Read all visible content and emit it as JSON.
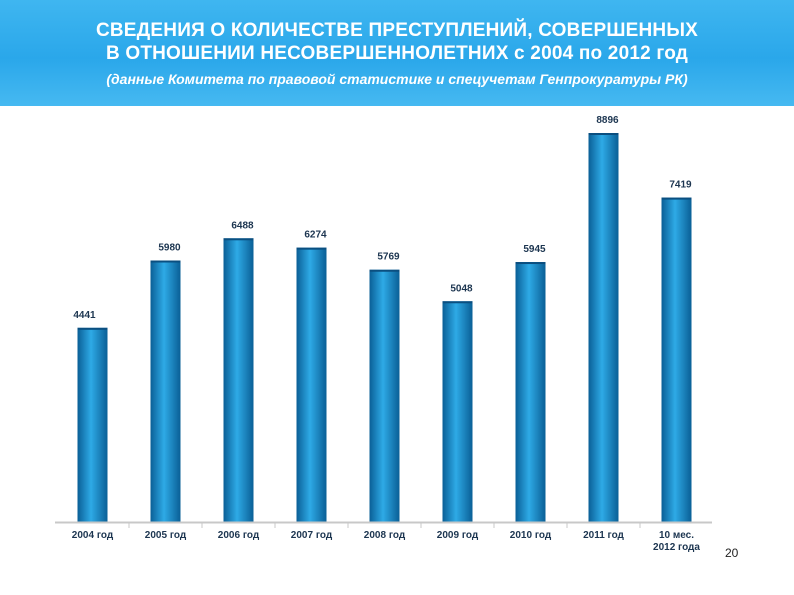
{
  "header": {
    "title_line1": "СВЕДЕНИЯ О КОЛИЧЕСТВЕ ПРЕСТУПЛЕНИЙ, СОВЕРШЕННЫХ",
    "title_line2": "В ОТНОШЕНИИ НЕСОВЕРШЕННОЛЕТНИХ с 2004 по 2012 год",
    "subtitle": "(данные Комитета по правовой статистике и спецучетам Генпрокуратуры РК)"
  },
  "chart_data": {
    "type": "bar",
    "categories": [
      "2004 год",
      "2005 год",
      "2006 год",
      "2007 год",
      "2008 год",
      "2009 год",
      "2010 год",
      "2011 год",
      [
        "10 мес.",
        "2012 года"
      ]
    ],
    "values": [
      4441,
      5980,
      6488,
      6274,
      5769,
      5048,
      5945,
      8896,
      7419
    ],
    "title": "",
    "xlabel": "",
    "ylabel": "",
    "ylim": [
      0,
      8896
    ],
    "grid": false,
    "legend": "none"
  },
  "colors": {
    "banner": "#2aa7ea",
    "bar_dark": "#0a5f96",
    "bar_light": "#2eaae6",
    "axis": "#c8c8c8",
    "label": "#1c3550"
  },
  "page_number": "20"
}
